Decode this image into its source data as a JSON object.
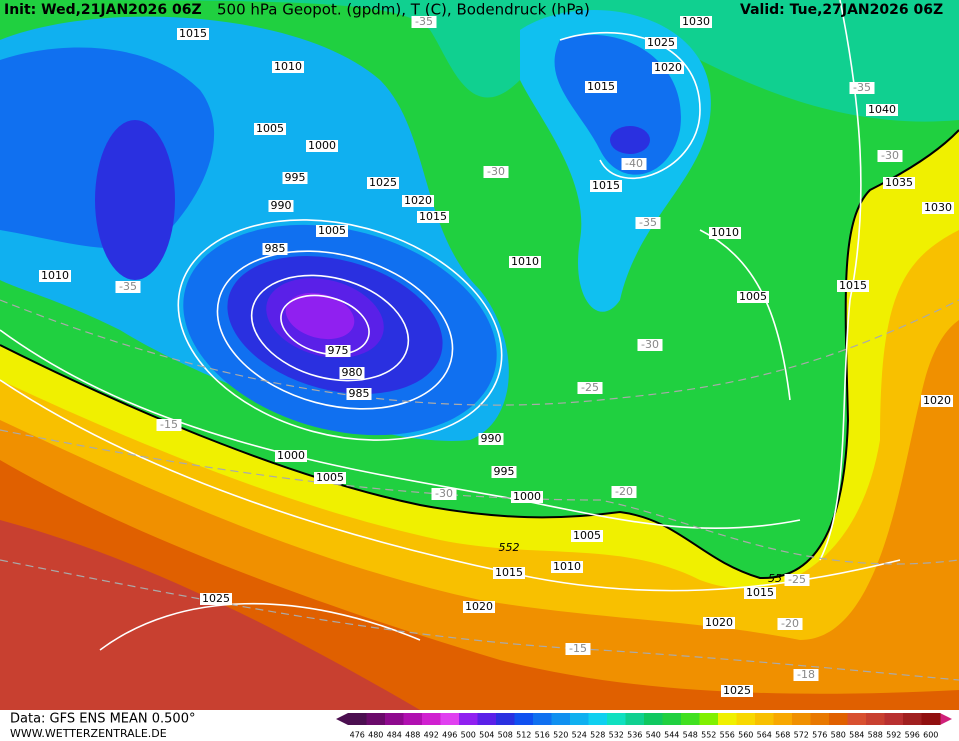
{
  "header": {
    "init": "Init: Wed,21JAN2026 06Z",
    "title": "500 hPa Geopot. (gpdm), T (C), Bodendruck (hPa)",
    "valid": "Valid: Tue,27JAN2026 06Z"
  },
  "footer": {
    "data": "Data: GFS ENS MEAN 0.500°",
    "site": "WWW.WETTERZENTRALE.DE"
  },
  "colorbar": {
    "values": [
      476,
      480,
      484,
      488,
      492,
      496,
      500,
      504,
      508,
      512,
      516,
      520,
      524,
      528,
      532,
      536,
      540,
      544,
      548,
      552,
      556,
      560,
      564,
      568,
      572,
      576,
      580,
      584,
      588,
      592,
      596,
      600
    ],
    "colors": [
      "#4b0f50",
      "#6a0a6a",
      "#8e0a8e",
      "#b010b0",
      "#d020d0",
      "#e040f0",
      "#9020f0",
      "#5a20e8",
      "#2a30e0",
      "#1050f0",
      "#1070f0",
      "#1090f0",
      "#10b0f0",
      "#10d0f0",
      "#10e0c0",
      "#10d090",
      "#10c860",
      "#20d040",
      "#40e020",
      "#80f000",
      "#f0f000",
      "#f8d800",
      "#f8c000",
      "#f8a800",
      "#f09000",
      "#e87800",
      "#e06000",
      "#d85030",
      "#c84030",
      "#b83030",
      "#a02020",
      "#901010"
    ]
  },
  "isobar_labels": [
    "1015",
    "1010",
    "1005",
    "1000",
    "995",
    "990",
    "985",
    "975",
    "980",
    "985",
    "1005",
    "1025",
    "1020",
    "1015",
    "1010",
    "1010",
    "990",
    "995",
    "1000",
    "1000",
    "1005",
    "1005",
    "1010",
    "1015",
    "1020",
    "1025",
    "1020",
    "1015",
    "1025",
    "1030",
    "1025",
    "1020",
    "1015",
    "1015",
    "1010",
    "1005",
    "1040",
    "1035",
    "1030",
    "1015",
    "1020"
  ],
  "temperature_labels": [
    "-35",
    "-35",
    "-30",
    "-40",
    "-30",
    "-35",
    "-35",
    "-30",
    "-25",
    "-15",
    "-30",
    "-20",
    "-25",
    "-20",
    "-15",
    "-18"
  ],
  "height_labels": [
    "552",
    "55"
  ]
}
